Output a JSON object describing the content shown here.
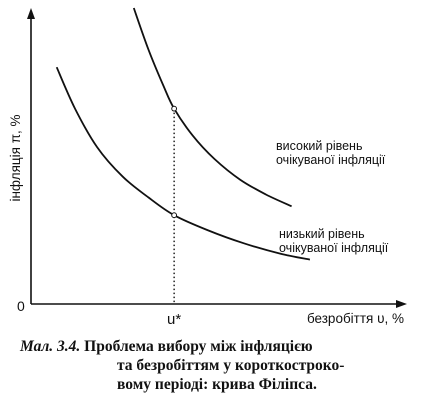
{
  "chart_data": {
    "type": "line",
    "xlabel": "безробіття υ, %",
    "ylabel": "інфляція π, %",
    "origin_label": "0",
    "x_tick_label": "u*",
    "xlim": [
      0,
      10
    ],
    "ylim": [
      0,
      10
    ],
    "u_star": 3.9,
    "series": [
      {
        "name": "високий рівень очікуваної інфляції",
        "label_lines": [
          "високий рівень",
          "очікуваної інфляції"
        ],
        "x": [
          2.8,
          3.2,
          3.6,
          3.9,
          4.4,
          5.0,
          5.7,
          6.4,
          7.1
        ],
        "y": [
          10.0,
          8.6,
          7.4,
          6.6,
          5.7,
          4.9,
          4.2,
          3.7,
          3.3
        ]
      },
      {
        "name": "низький рівень очікуваної інфляції",
        "label_lines": [
          "низький рівень",
          "очікуваної інфляції"
        ],
        "x": [
          0.7,
          1.2,
          1.8,
          2.5,
          3.2,
          3.9,
          4.8,
          5.8,
          6.8,
          7.6
        ],
        "y": [
          8.0,
          6.6,
          5.3,
          4.3,
          3.6,
          3.0,
          2.5,
          2.05,
          1.7,
          1.5
        ]
      }
    ]
  },
  "caption": {
    "prefix": "Мал. 3.4.",
    "line1": "Проблема вибору між інфляцією",
    "line2": "та безробіттям у короткостроко-",
    "line3": "вому періоді: крива Філіпса."
  }
}
